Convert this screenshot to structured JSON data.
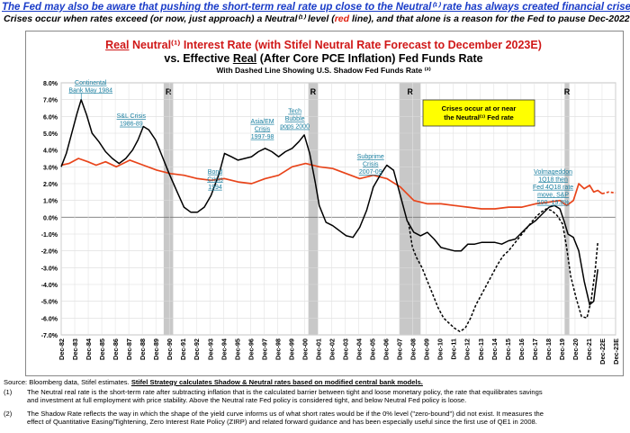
{
  "header": {
    "line1": "The Fed may also be aware that pushing the short-term real rate up close to the Neutral⁽¹⁾ rate has always created financial crises",
    "line2_a": "Crises occur when rates exceed (or now, just approach) a Neutral⁽¹⁾ level (",
    "line2_red": "red",
    "line2_b": " line), and that alone is a reason for the Fed to pause Dec-2022"
  },
  "chart_data": {
    "type": "line",
    "title_red_underlined": "Real",
    "title_rest": " Neutral⁽¹⁾ Interest Rate (with Stifel Neutral Rate Forecast to December 2023E)",
    "subtitle_a": "vs. Effective ",
    "subtitle_u": "Real",
    "subtitle_b": " (After Core PCE Inflation) Fed Funds Rate",
    "subtitle2": "With Dashed Line Showing U.S. Shadow Fed Funds Rate ⁽²⁾",
    "ylim": [
      -7.0,
      8.0
    ],
    "y_ticks": [
      "8.0%",
      "7.0%",
      "6.0%",
      "5.0%",
      "4.0%",
      "3.0%",
      "2.0%",
      "1.0%",
      "0.0%",
      "-1.0%",
      "-2.0%",
      "-3.0%",
      "-4.0%",
      "-5.0%",
      "-6.0%",
      "-7.0%"
    ],
    "xlim": [
      1982.92,
      2023.92
    ],
    "x_ticks": [
      "Dec-82",
      "Dec-83",
      "Dec-84",
      "Dec-85",
      "Dec-86",
      "Dec-87",
      "Dec-88",
      "Dec-89",
      "Dec-90",
      "Dec-91",
      "Dec-92",
      "Dec-93",
      "Dec-94",
      "Dec-95",
      "Dec-96",
      "Dec-97",
      "Dec-98",
      "Dec-99",
      "Dec-00",
      "Dec-01",
      "Dec-02",
      "Dec-03",
      "Dec-04",
      "Dec-05",
      "Dec-06",
      "Dec-07",
      "Dec-08",
      "Dec-09",
      "Dec-10",
      "Dec-11",
      "Dec-12",
      "Dec-13",
      "Dec-14",
      "Dec-15",
      "Dec-16",
      "Dec-17",
      "Dec-18",
      "Dec-19",
      "Dec-20",
      "Dec-21",
      "Dec-22E",
      "Dec-23E"
    ],
    "grid": true,
    "recessions": [
      {
        "label": "R",
        "start": 1990.5,
        "end": 1991.2
      },
      {
        "label": "R",
        "start": 2001.2,
        "end": 2001.9
      },
      {
        "label": "R",
        "start": 2007.95,
        "end": 2009.5
      },
      {
        "label": "R",
        "start": 2020.15,
        "end": 2020.5
      }
    ],
    "series": [
      {
        "color": "#e8441a",
        "style": "solid",
        "x": [
          1982.92,
          1983.5,
          1984.2,
          1984.9,
          1985.5,
          1986.2,
          1987,
          1988,
          1989,
          1990,
          1991,
          1992,
          1993,
          1994,
          1995,
          1996,
          1997,
          1998,
          1999,
          2000,
          2001,
          2002,
          2003,
          2004,
          2005,
          2006,
          2007,
          2008,
          2009,
          2010,
          2011,
          2012,
          2013,
          2014,
          2015,
          2016,
          2017,
          2018,
          2019,
          2019.8,
          2020.3,
          2020.8,
          2021.2,
          2021.6,
          2022.0,
          2022.3,
          2022.6,
          2022.92
        ],
        "y": [
          3.1,
          3.2,
          3.5,
          3.3,
          3.1,
          3.3,
          3.0,
          3.4,
          3.1,
          2.8,
          2.6,
          2.5,
          2.3,
          2.2,
          2.3,
          2.1,
          2.0,
          2.3,
          2.5,
          3.0,
          3.2,
          3.0,
          2.9,
          2.6,
          2.3,
          2.5,
          2.3,
          1.8,
          1.0,
          0.8,
          0.8,
          0.7,
          0.6,
          0.5,
          0.5,
          0.6,
          0.6,
          0.8,
          0.9,
          1.0,
          0.7,
          1.0,
          2.0,
          1.7,
          1.9,
          1.5,
          1.6,
          1.4
        ]
      },
      {
        "color": "#e8441a",
        "style": "dashed",
        "x": [
          2022.92,
          2023.4,
          2023.92
        ],
        "y": [
          1.4,
          1.5,
          1.45
        ]
      },
      {
        "color": "#000000",
        "style": "solid",
        "x": [
          1982.92,
          1983.3,
          1983.8,
          1984.1,
          1984.4,
          1984.8,
          1985.2,
          1985.7,
          1986.2,
          1986.7,
          1987.2,
          1987.7,
          1988.2,
          1988.6,
          1989.0,
          1989.4,
          1989.9,
          1990.4,
          1990.9,
          1991.5,
          1992.0,
          1992.5,
          1993.0,
          1993.5,
          1994.0,
          1994.6,
          1995.0,
          1995.5,
          1996.0,
          1996.5,
          1997.0,
          1997.5,
          1998.0,
          1998.5,
          1999.0,
          1999.5,
          2000.0,
          2000.5,
          2000.9,
          2001.3,
          2001.7,
          2002.0,
          2002.5,
          2003.0,
          2003.5,
          2004.0,
          2004.5,
          2005.0,
          2005.5,
          2006.0,
          2006.5,
          2007.0,
          2007.5,
          2008.0,
          2008.5,
          2009.0,
          2009.5,
          2010.0,
          2010.5,
          2011.0,
          2011.5,
          2012.0,
          2012.5,
          2013.0,
          2013.5,
          2014.0,
          2014.5,
          2015.0,
          2015.5,
          2016.0,
          2016.5,
          2017.0,
          2017.5,
          2018.0,
          2018.5,
          2019.0,
          2019.4,
          2019.8,
          2020.1,
          2020.4,
          2020.8,
          2021.2,
          2021.6,
          2022.0,
          2022.3,
          2022.6
        ],
        "y": [
          3.0,
          3.8,
          5.3,
          6.2,
          7.0,
          6.1,
          5.0,
          4.5,
          3.9,
          3.5,
          3.2,
          3.5,
          4.0,
          4.6,
          5.4,
          5.2,
          4.6,
          3.6,
          2.6,
          1.5,
          0.6,
          0.3,
          0.3,
          0.6,
          1.3,
          2.6,
          3.8,
          3.6,
          3.4,
          3.5,
          3.6,
          3.9,
          4.1,
          3.9,
          3.6,
          3.9,
          4.1,
          4.5,
          4.9,
          3.8,
          2.1,
          0.7,
          -0.3,
          -0.5,
          -0.8,
          -1.1,
          -1.2,
          -0.6,
          0.4,
          1.8,
          2.5,
          3.1,
          2.8,
          1.3,
          -0.2,
          -0.9,
          -1.1,
          -0.9,
          -1.3,
          -1.8,
          -1.9,
          -2.0,
          -2.0,
          -1.6,
          -1.6,
          -1.5,
          -1.5,
          -1.5,
          -1.6,
          -1.4,
          -1.3,
          -0.9,
          -0.5,
          -0.2,
          0.2,
          0.6,
          0.7,
          0.5,
          -0.2,
          -1.0,
          -1.2,
          -2.0,
          -3.8,
          -5.2,
          -5.0,
          -3.1
        ]
      },
      {
        "color": "#000000",
        "style": "dashed",
        "x": [
          2008.6,
          2008.9,
          2009.2,
          2009.6,
          2010.0,
          2010.4,
          2010.8,
          2011.2,
          2011.6,
          2012.0,
          2012.4,
          2012.8,
          2013.2,
          2013.6,
          2014.0,
          2014.4,
          2014.8,
          2015.2,
          2015.6,
          2016.0,
          2016.4,
          2016.8,
          2017.2,
          2017.6,
          2018.0,
          2018.4,
          2018.8,
          2019.2,
          2019.6,
          2020.0,
          2020.3,
          2020.6,
          2021.0,
          2021.4,
          2021.8,
          2022.1,
          2022.4,
          2022.6
        ],
        "y": [
          -0.3,
          -1.8,
          -2.4,
          -3.0,
          -3.8,
          -4.6,
          -5.4,
          -6.0,
          -6.3,
          -6.6,
          -6.8,
          -6.6,
          -6.0,
          -5.2,
          -4.6,
          -4.0,
          -3.4,
          -2.8,
          -2.3,
          -2.0,
          -1.6,
          -1.2,
          -0.8,
          -0.4,
          0.0,
          0.3,
          0.5,
          0.4,
          0.1,
          -0.4,
          -1.8,
          -3.5,
          -4.8,
          -5.9,
          -6.0,
          -5.0,
          -3.2,
          -1.5
        ]
      }
    ],
    "annotations": [
      {
        "lines": [
          "Continental",
          "Bank May 1984"
        ],
        "at": [
          1985.1,
          7.9
        ],
        "leader": [
          [
            1984.4,
            7.4
          ],
          [
            1984.4,
            7.0
          ]
        ]
      },
      {
        "lines": [
          "S&L Crisis",
          "1986-89"
        ],
        "at": [
          1988.1,
          5.9
        ]
      },
      {
        "lines": [
          "Bond",
          "Crisis",
          "1994"
        ],
        "at": [
          1994.3,
          2.6
        ]
      },
      {
        "lines": [
          "Asia/EM",
          "Crisis",
          "1997-98"
        ],
        "at": [
          1997.8,
          5.6
        ]
      },
      {
        "lines": [
          "Tech",
          "Bubble",
          "pops 2000"
        ],
        "at": [
          2000.2,
          6.2
        ]
      },
      {
        "lines": [
          "Subprime",
          "Crisis",
          "2007-09"
        ],
        "at": [
          2005.8,
          3.5
        ]
      },
      {
        "lines": [
          "Volmageddon",
          "1Q18 then",
          "Fed 4Q18 rate",
          "move, S&P",
          "500 -19.8%"
        ],
        "at": [
          2019.3,
          2.6
        ]
      }
    ],
    "callout_lines": [
      "Crises occur at or near",
      "the Neutral⁽¹⁾ Fed rate"
    ]
  },
  "footer": {
    "source_a": "Source: Bloomberg data, Stifel estimates.  ",
    "source_b": "Stifel Strategy calculates Shadow & Neutral rates based on modified central bank models.",
    "n1_num": "(1)",
    "n1_l1": "The Neutral real rate is the short-term rate after subtracting inflation that is the calculated barrier between tight and loose monetary policy, the rate that equilibrates savings",
    "n1_l2": "and investment at full employment with price stability. Above the Neutral rate Fed policy is considered tight, and below Neutral Fed policy is loose.",
    "n2_num": "(2)",
    "n2_l1": "The Shadow Rate reflects the way in which the shape of the yield curve informs us of what short rates would be if the 0% level (\"zero-bound\") did not exist. It measures the",
    "n2_l2": "effect of Quantitative Easing/Tightening, Zero Interest Rate Policy (ZIRP) and related forward guidance and has been especially useful since the first use of QE1 in 2008."
  }
}
